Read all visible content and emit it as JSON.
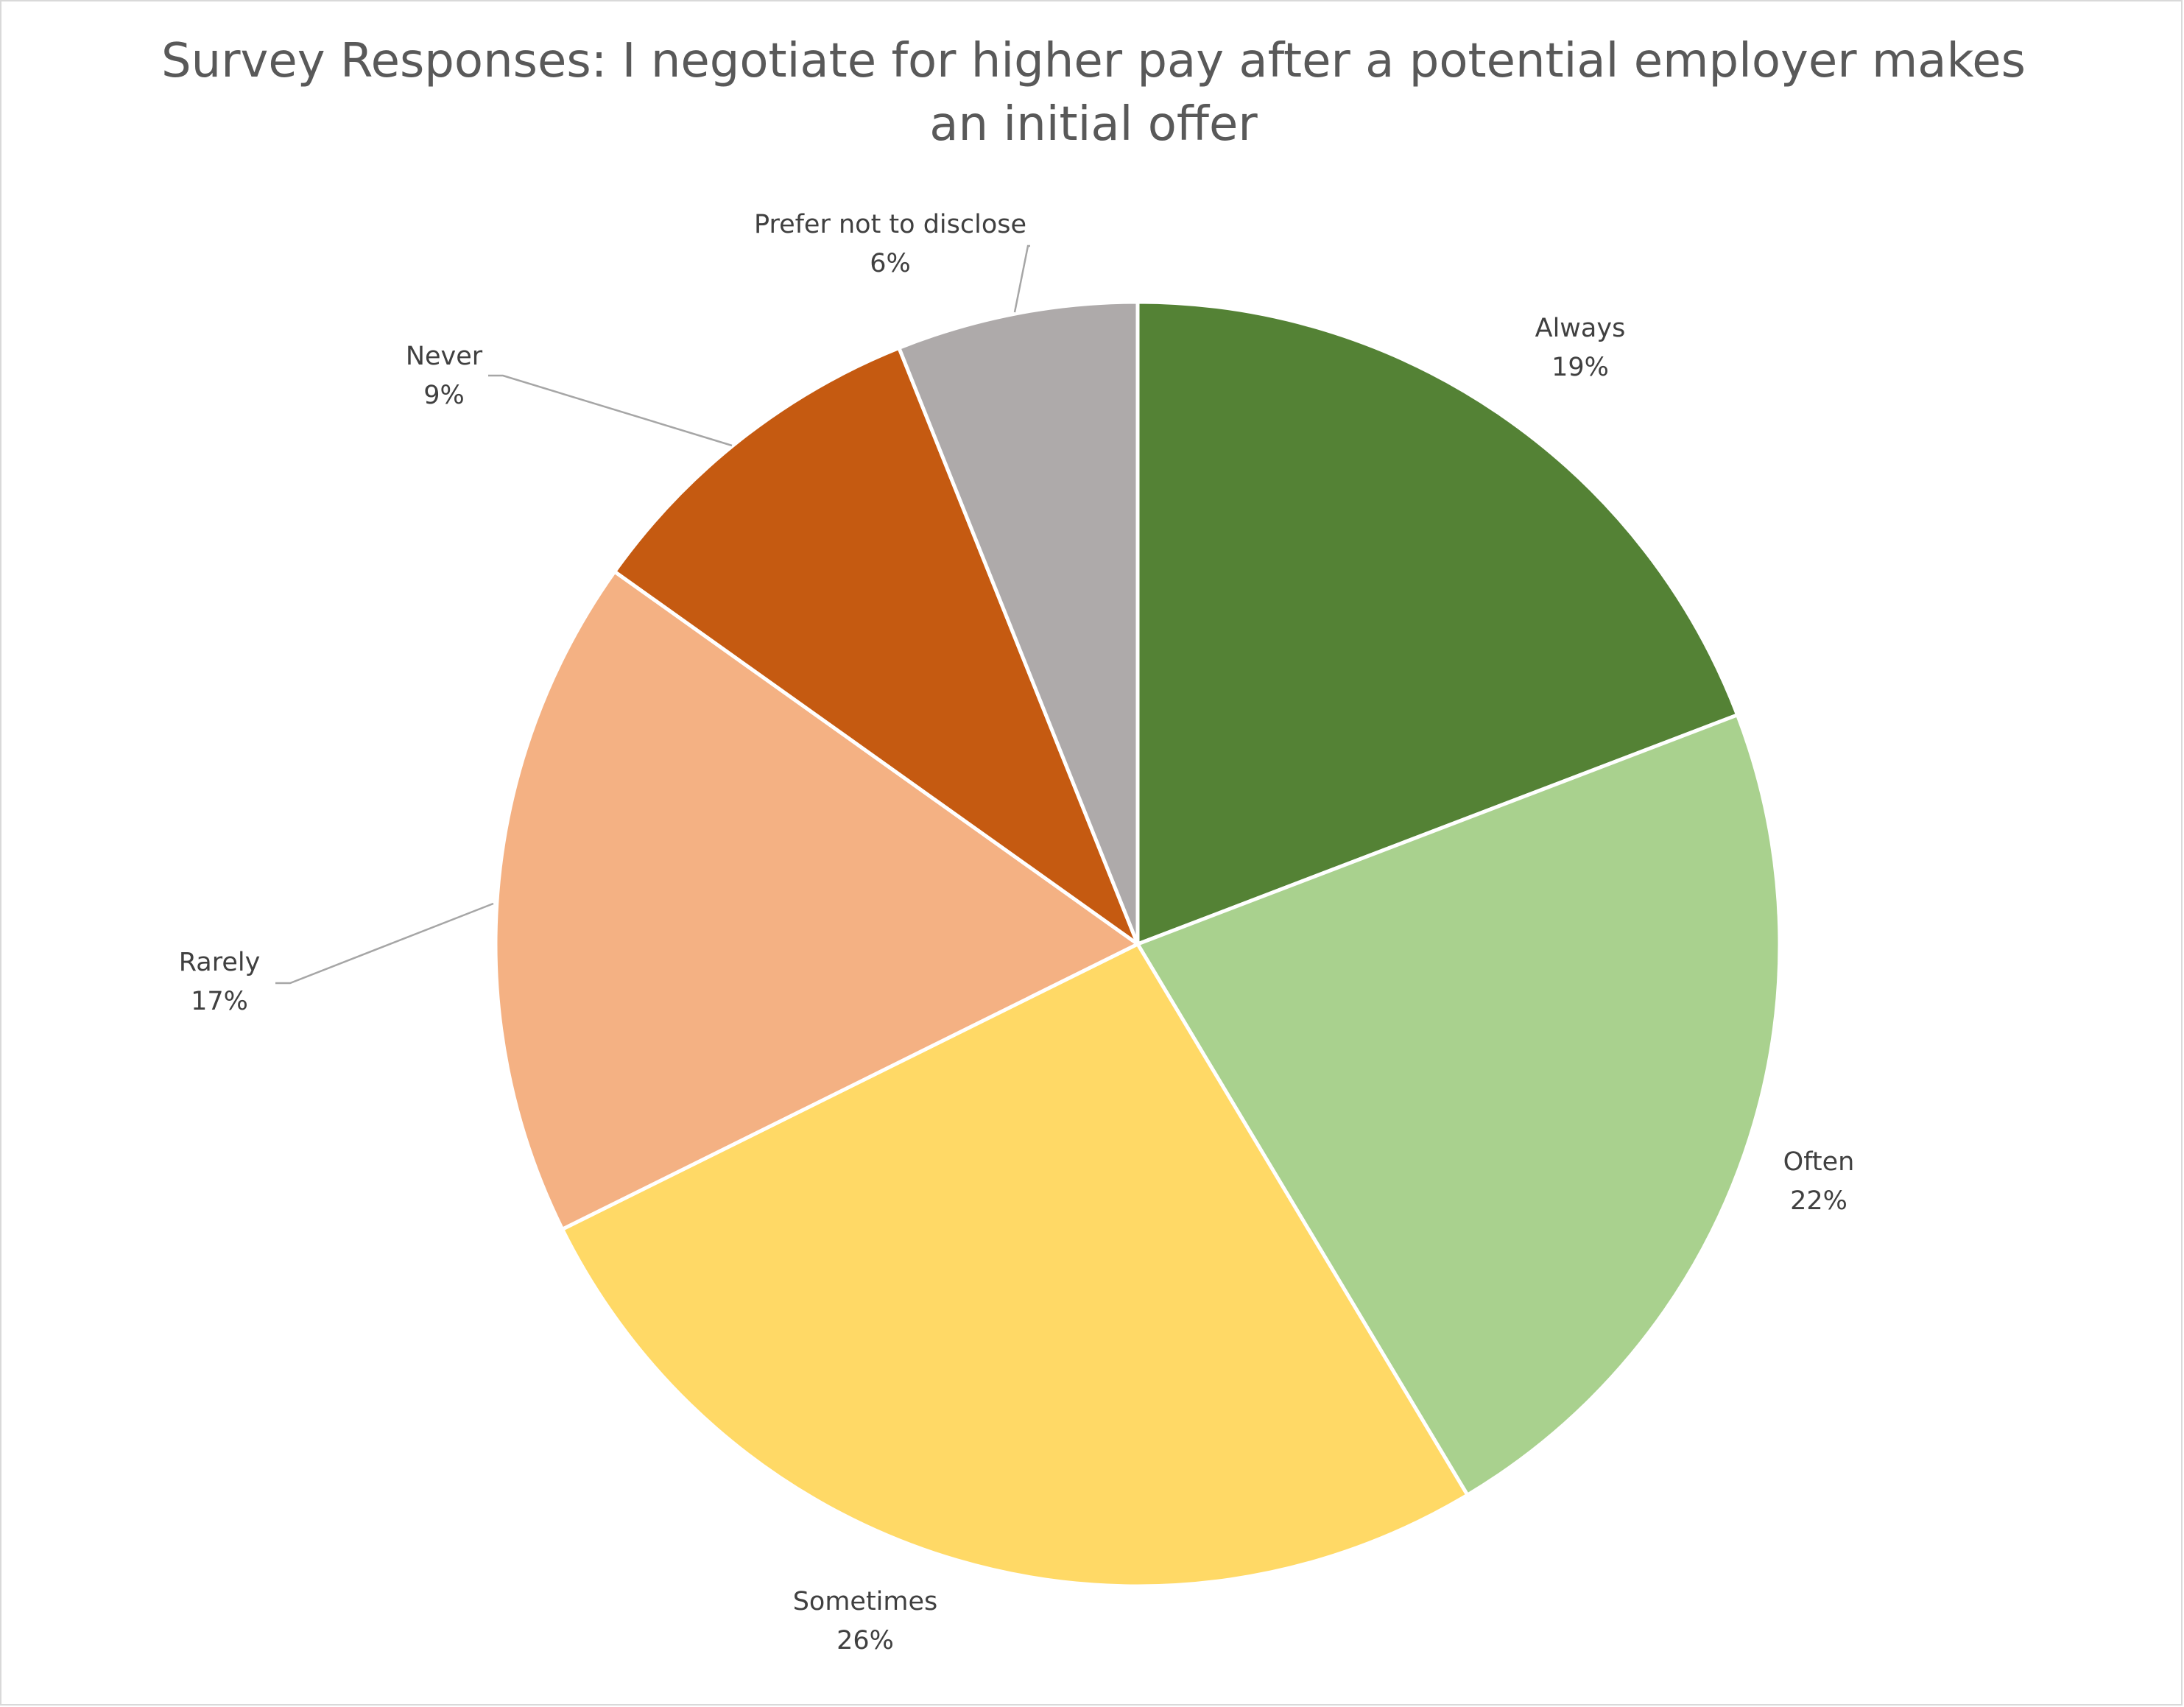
{
  "chart_data": {
    "type": "pie",
    "title": "Survey Responses: I negotiate for higher pay after a potential employer makes an initial offer",
    "start_angle_deg": 0,
    "direction": "clockwise",
    "slices": [
      {
        "label": "Always",
        "value": 19,
        "value_label": "19%",
        "color": "#548235"
      },
      {
        "label": "Often",
        "value": 22,
        "value_label": "22%",
        "color": "#A9D18E"
      },
      {
        "label": "Sometimes",
        "value": 26,
        "value_label": "26%",
        "color": "#FFD966"
      },
      {
        "label": "Rarely",
        "value": 17,
        "value_label": "17%",
        "color": "#F4B183"
      },
      {
        "label": "Never",
        "value": 9,
        "value_label": "9%",
        "color": "#C55A11"
      },
      {
        "label": "Prefer not to disclose",
        "value": 6,
        "value_label": "6%",
        "color": "#AEAAAA"
      }
    ],
    "slice_border_color": "#FFFFFF",
    "leader_line_color": "#A6A6A6",
    "legend": "none"
  }
}
